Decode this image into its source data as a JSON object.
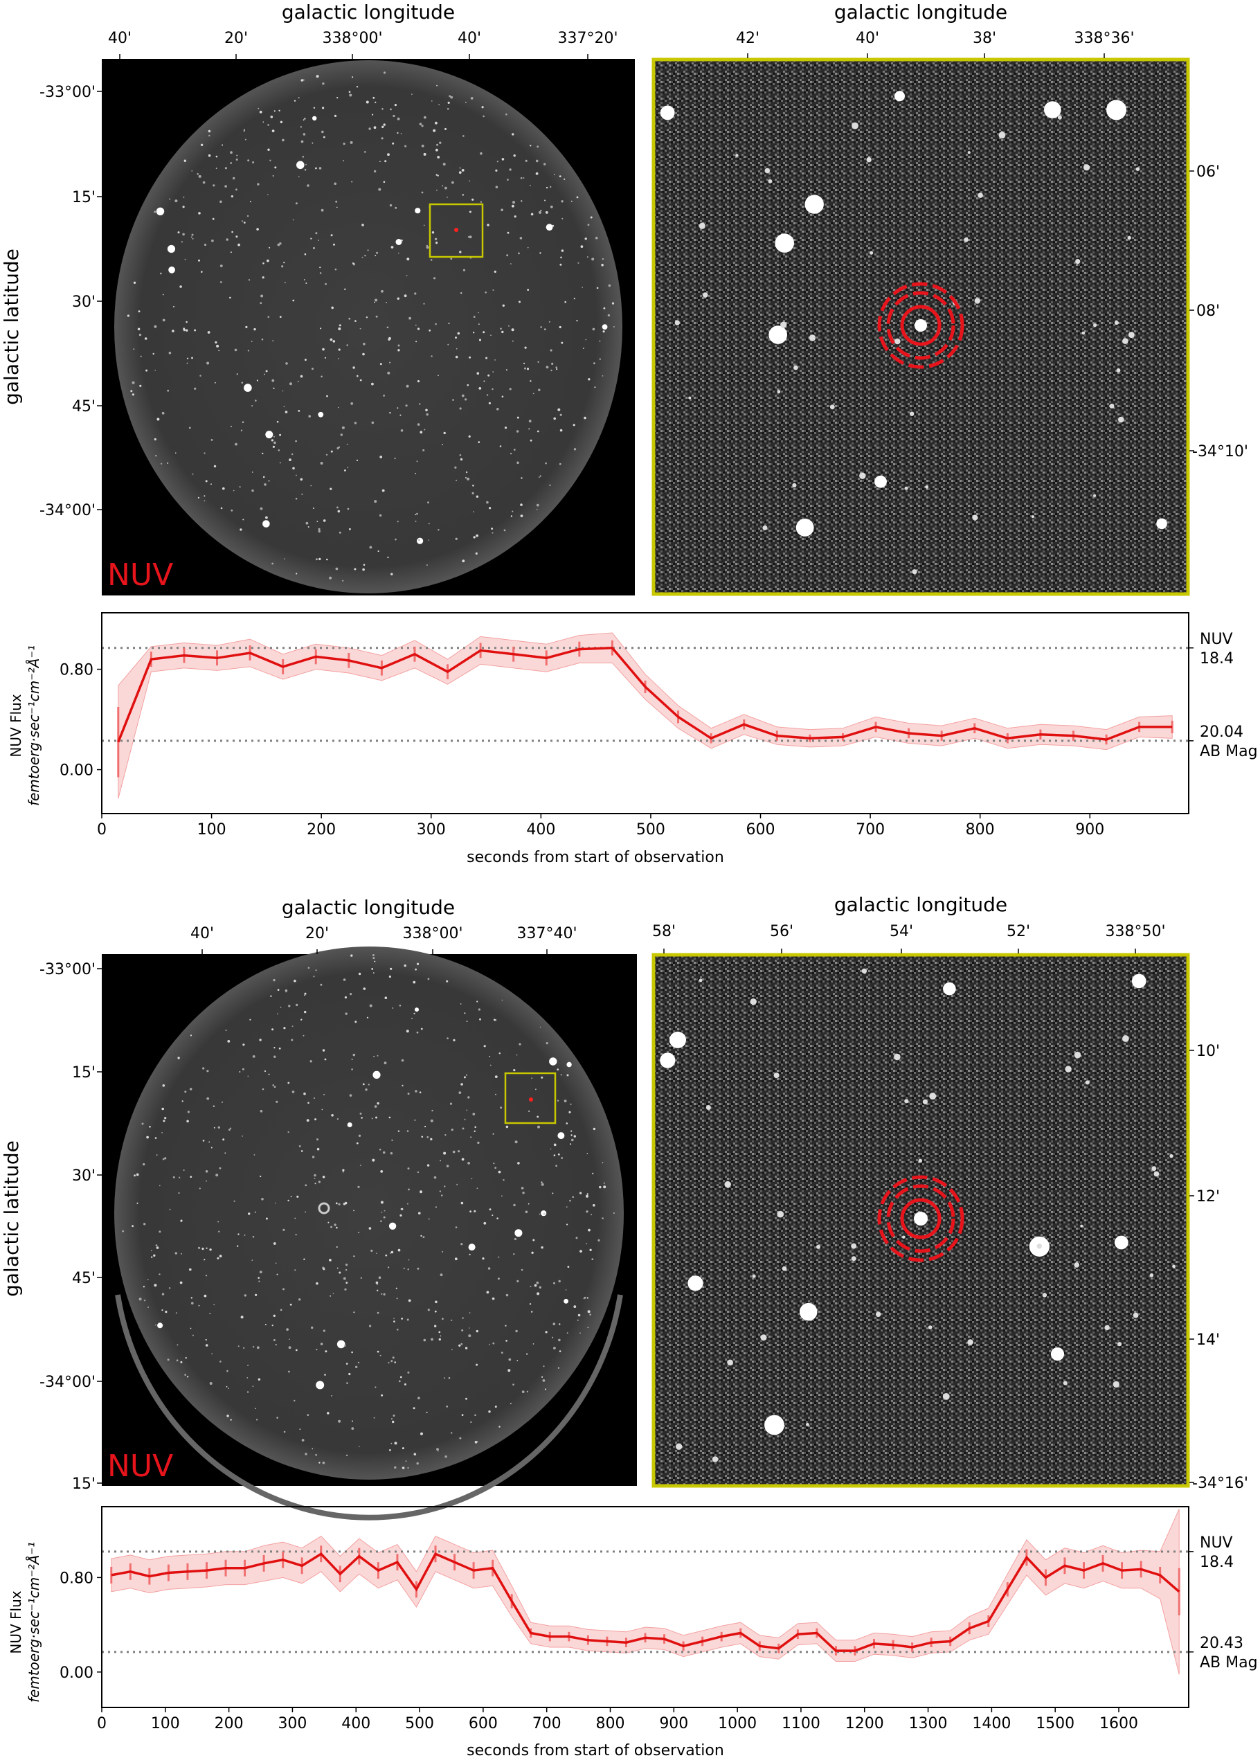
{
  "panels": [
    {
      "sky": {
        "xlabel": "galactic longitude",
        "ylabel": "galactic latitude",
        "xticks": [
          "40'",
          "20'",
          "338°00'",
          "40'",
          "337°20'"
        ],
        "yticks": [
          "-33°00'",
          "15'",
          "30'",
          "45'",
          "-34°00'"
        ],
        "band": "NUV"
      },
      "zoom": {
        "xlabel": "galactic longitude",
        "xticks": [
          "42'",
          "40'",
          "38'",
          "338°36'"
        ],
        "yticks": [
          "06'",
          "08'",
          "-34°10'"
        ]
      }
    },
    {
      "sky": {
        "xlabel": "galactic longitude",
        "ylabel": "galactic latitude",
        "xticks": [
          "40'",
          "20'",
          "338°00'",
          "337°40'"
        ],
        "yticks": [
          "-33°00'",
          "15'",
          "30'",
          "45'",
          "-34°00'",
          "15'"
        ],
        "band": "NUV"
      },
      "zoom": {
        "xlabel": "galactic longitude",
        "xticks": [
          "58'",
          "56'",
          "54'",
          "52'",
          "338°50'"
        ],
        "yticks": [
          "10'",
          "12'",
          "14'",
          "-34°16'"
        ]
      }
    }
  ],
  "chart_data": [
    {
      "type": "line",
      "xlabel": "seconds from start of observation",
      "ylabel_line1": "NUV Flux",
      "ylabel_line2": "femtoerg·sec⁻¹cm⁻²Å⁻¹",
      "xlim": [
        0,
        990
      ],
      "ylim": [
        -0.35,
        1.25
      ],
      "xticks": [
        0,
        100,
        200,
        300,
        400,
        500,
        600,
        700,
        800,
        900
      ],
      "yticks": [
        "0.00",
        "0.80"
      ],
      "ytick_values": [
        0.0,
        0.8
      ],
      "ref_lines": [
        {
          "value": 0.97,
          "label1": "NUV",
          "label2": "18.4"
        },
        {
          "value": 0.23,
          "label1": "20.04",
          "label2": "AB Mag"
        }
      ],
      "series": [
        {
          "name": "NUV flux",
          "x": [
            15,
            45,
            75,
            105,
            135,
            165,
            195,
            225,
            255,
            285,
            315,
            345,
            375,
            405,
            435,
            465,
            495,
            525,
            555,
            585,
            615,
            645,
            675,
            705,
            735,
            765,
            795,
            825,
            855,
            885,
            915,
            945,
            975
          ],
          "y": [
            0.22,
            0.88,
            0.91,
            0.89,
            0.93,
            0.82,
            0.9,
            0.87,
            0.81,
            0.92,
            0.78,
            0.95,
            0.92,
            0.89,
            0.96,
            0.97,
            0.66,
            0.42,
            0.25,
            0.36,
            0.27,
            0.25,
            0.26,
            0.34,
            0.29,
            0.27,
            0.33,
            0.25,
            0.28,
            0.27,
            0.24,
            0.34,
            0.34
          ],
          "err": [
            0.28,
            0.06,
            0.06,
            0.06,
            0.06,
            0.06,
            0.06,
            0.06,
            0.06,
            0.06,
            0.06,
            0.06,
            0.06,
            0.06,
            0.06,
            0.06,
            0.05,
            0.05,
            0.04,
            0.04,
            0.04,
            0.03,
            0.03,
            0.04,
            0.04,
            0.04,
            0.04,
            0.04,
            0.04,
            0.04,
            0.04,
            0.04,
            0.05
          ],
          "band": [
            0.45,
            0.1,
            0.1,
            0.1,
            0.11,
            0.1,
            0.1,
            0.1,
            0.1,
            0.11,
            0.1,
            0.11,
            0.11,
            0.11,
            0.11,
            0.12,
            0.1,
            0.09,
            0.08,
            0.08,
            0.07,
            0.07,
            0.07,
            0.08,
            0.08,
            0.08,
            0.08,
            0.08,
            0.08,
            0.08,
            0.08,
            0.08,
            0.09
          ]
        }
      ]
    },
    {
      "type": "line",
      "xlabel": "seconds from start of observation",
      "ylabel_line1": "NUV Flux",
      "ylabel_line2": "femtoerg·sec⁻¹cm⁻²Å⁻¹",
      "xlim": [
        0,
        1710
      ],
      "ylim": [
        -0.3,
        1.4
      ],
      "xticks": [
        0,
        100,
        200,
        300,
        400,
        500,
        600,
        700,
        800,
        900,
        1000,
        1100,
        1200,
        1300,
        1400,
        1500,
        1600
      ],
      "yticks": [
        "0.00",
        "0.80"
      ],
      "ytick_values": [
        0.0,
        0.8
      ],
      "ref_lines": [
        {
          "value": 1.02,
          "label1": "NUV",
          "label2": "18.4"
        },
        {
          "value": 0.17,
          "label1": "20.43",
          "label2": "AB Mag"
        }
      ],
      "series": [
        {
          "name": "NUV flux",
          "x": [
            15,
            45,
            75,
            105,
            135,
            165,
            195,
            225,
            255,
            285,
            315,
            345,
            375,
            405,
            435,
            465,
            495,
            525,
            555,
            585,
            615,
            645,
            675,
            705,
            735,
            765,
            795,
            825,
            855,
            885,
            915,
            945,
            975,
            1005,
            1035,
            1065,
            1095,
            1125,
            1155,
            1185,
            1215,
            1245,
            1275,
            1305,
            1335,
            1365,
            1395,
            1425,
            1455,
            1485,
            1515,
            1545,
            1575,
            1605,
            1635,
            1665,
            1695
          ],
          "y": [
            0.82,
            0.85,
            0.81,
            0.84,
            0.85,
            0.86,
            0.88,
            0.88,
            0.92,
            0.95,
            0.9,
            1.0,
            0.83,
            0.98,
            0.86,
            0.93,
            0.7,
            1.0,
            0.93,
            0.86,
            0.88,
            0.6,
            0.33,
            0.3,
            0.3,
            0.27,
            0.26,
            0.25,
            0.29,
            0.28,
            0.22,
            0.26,
            0.3,
            0.33,
            0.22,
            0.2,
            0.32,
            0.33,
            0.18,
            0.18,
            0.24,
            0.23,
            0.21,
            0.25,
            0.26,
            0.37,
            0.43,
            0.7,
            0.97,
            0.8,
            0.9,
            0.86,
            0.92,
            0.86,
            0.87,
            0.82,
            0.68
          ],
          "err": [
            0.07,
            0.07,
            0.07,
            0.07,
            0.07,
            0.07,
            0.07,
            0.07,
            0.07,
            0.07,
            0.07,
            0.07,
            0.07,
            0.07,
            0.07,
            0.07,
            0.07,
            0.07,
            0.07,
            0.07,
            0.07,
            0.06,
            0.04,
            0.04,
            0.04,
            0.04,
            0.04,
            0.04,
            0.04,
            0.04,
            0.04,
            0.04,
            0.04,
            0.04,
            0.04,
            0.04,
            0.04,
            0.04,
            0.04,
            0.04,
            0.04,
            0.04,
            0.04,
            0.04,
            0.04,
            0.05,
            0.05,
            0.06,
            0.07,
            0.07,
            0.07,
            0.07,
            0.07,
            0.07,
            0.07,
            0.07,
            0.2
          ],
          "band": [
            0.14,
            0.14,
            0.14,
            0.14,
            0.14,
            0.14,
            0.14,
            0.14,
            0.15,
            0.15,
            0.15,
            0.15,
            0.15,
            0.15,
            0.15,
            0.15,
            0.15,
            0.15,
            0.15,
            0.15,
            0.15,
            0.13,
            0.09,
            0.09,
            0.09,
            0.09,
            0.09,
            0.09,
            0.09,
            0.09,
            0.09,
            0.09,
            0.09,
            0.09,
            0.09,
            0.09,
            0.09,
            0.09,
            0.09,
            0.09,
            0.09,
            0.09,
            0.09,
            0.09,
            0.09,
            0.1,
            0.11,
            0.13,
            0.15,
            0.15,
            0.15,
            0.15,
            0.15,
            0.15,
            0.16,
            0.2,
            0.7
          ]
        }
      ]
    }
  ]
}
